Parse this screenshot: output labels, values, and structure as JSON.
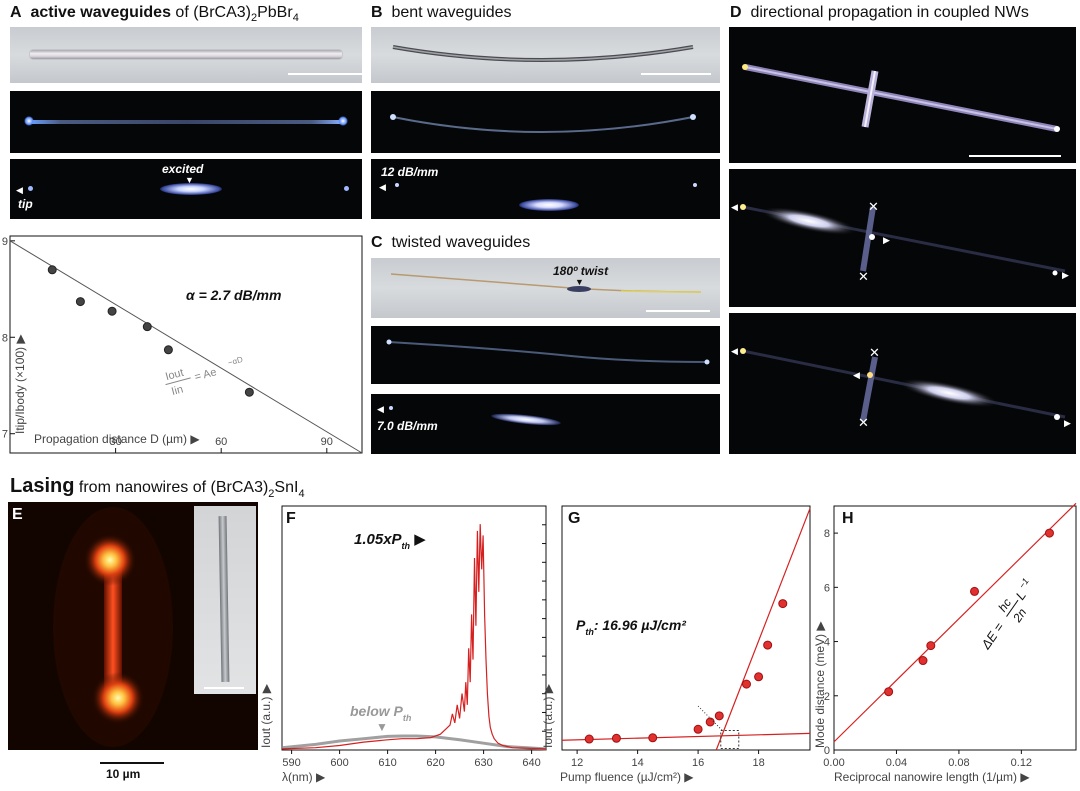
{
  "panel_A": {
    "letter": "A",
    "title_bold": "active waveguides",
    "title_rest": " of (BrCA3)",
    "title_sub1": "2",
    "title_mid": "PbBr",
    "title_sub2": "4",
    "label_excited": "excited",
    "label_tip": "tip",
    "colors": {
      "background": "#ffffff",
      "accent": "#d62020"
    }
  },
  "panel_B": {
    "letter": "B",
    "title": "bent waveguides",
    "loss_label": "12 dB/mm"
  },
  "panel_C": {
    "letter": "C",
    "title": "twisted waveguides",
    "twist_label": "180º twist",
    "loss_label": "7.0 dB/mm"
  },
  "panel_D": {
    "letter": "D",
    "title": "directional propagation in coupled NWs"
  },
  "lasing_header": {
    "bold": "Lasing",
    "rest": " from nanowires of (BrCA3)",
    "sub1": "2",
    "mid": "SnI",
    "sub2": "4"
  },
  "panel_E": {
    "letter": "E",
    "scalebar_label": "10 µm"
  },
  "panel_F": {
    "letter": "F"
  },
  "panel_G": {
    "letter": "G"
  },
  "panel_H": {
    "letter": "H"
  },
  "chart_data": [
    {
      "id": "A-loss",
      "type": "scatter",
      "xlabel": "Propagation distance D (µm)",
      "ylabel": "Itip/Ibody (×100)",
      "xlim": [
        0,
        100
      ],
      "ylim": [
        6.8,
        9.05
      ],
      "xticks": [
        30,
        60,
        90
      ],
      "yticks": [
        7,
        8,
        9
      ],
      "points": [
        [
          12,
          8.7
        ],
        [
          20,
          8.37
        ],
        [
          29,
          8.27
        ],
        [
          39,
          8.11
        ],
        [
          45,
          7.87
        ],
        [
          68,
          7.43
        ]
      ],
      "fit_line": [
        [
          0,
          9.0
        ],
        [
          100,
          6.8
        ]
      ],
      "annotation": "α = 2.7 dB/mm",
      "formula_num": "Iout",
      "formula_den": "Iin",
      "formula_rhs": "= Ae",
      "formula_exp": "−αD",
      "colors": {
        "points": "#555555",
        "line": "#555555"
      }
    },
    {
      "id": "F-spectrum",
      "type": "line",
      "xlabel": "λ(nm)",
      "ylabel": "Iout (a.u.)",
      "xlim": [
        588,
        643
      ],
      "xticks": [
        590,
        600,
        610,
        620,
        630,
        640
      ],
      "series": [
        {
          "name": "1.05xPth",
          "x": [
            588,
            595,
            600,
            605,
            610,
            613,
            616,
            619,
            621,
            622,
            623,
            623.5,
            624,
            624.5,
            625,
            625.5,
            626,
            626.3,
            626.6,
            626.9,
            627.2,
            627.5,
            627.8,
            628.1,
            628.4,
            628.7,
            629,
            629.3,
            629.6,
            629.9,
            630.2,
            630.5,
            630.8,
            631.1,
            631.4,
            631.8,
            632.2,
            633,
            634,
            636,
            643
          ],
          "y": [
            0.005,
            0.01,
            0.02,
            0.035,
            0.045,
            0.05,
            0.05,
            0.055,
            0.07,
            0.09,
            0.11,
            0.16,
            0.12,
            0.2,
            0.14,
            0.25,
            0.17,
            0.3,
            0.2,
            0.45,
            0.3,
            0.6,
            0.4,
            0.85,
            0.55,
            0.97,
            0.7,
            1.0,
            0.8,
            0.95,
            0.6,
            0.4,
            0.25,
            0.15,
            0.1,
            0.07,
            0.05,
            0.03,
            0.02,
            0.01,
            0.005
          ],
          "color": "#d62020"
        },
        {
          "name": "below Pth",
          "x": [
            588,
            595,
            600,
            605,
            610,
            613,
            616,
            620,
            625,
            630,
            635,
            643
          ],
          "y": [
            0.01,
            0.025,
            0.04,
            0.05,
            0.06,
            0.062,
            0.062,
            0.058,
            0.045,
            0.03,
            0.015,
            0.005
          ],
          "color": "#888888"
        }
      ],
      "label_high": "1.05xP",
      "label_high_sub": "th",
      "label_low": "below P",
      "label_low_sub": "th"
    },
    {
      "id": "G-threshold",
      "type": "scatter",
      "xlabel": "Pump fluence (µJ/cm²)",
      "ylabel": "Iout (a.u.)",
      "xlim": [
        11.5,
        19.7
      ],
      "ylim": [
        0,
        1
      ],
      "xticks": [
        12,
        14,
        16,
        18
      ],
      "points": [
        [
          12.4,
          0.045
        ],
        [
          13.3,
          0.048
        ],
        [
          14.5,
          0.05
        ],
        [
          16.0,
          0.085
        ],
        [
          16.4,
          0.115
        ],
        [
          16.7,
          0.14
        ],
        [
          17.6,
          0.27
        ],
        [
          18.0,
          0.3
        ],
        [
          18.3,
          0.43
        ],
        [
          18.8,
          0.6
        ]
      ],
      "fit_below": [
        [
          11.5,
          0.04
        ],
        [
          19.7,
          0.068
        ]
      ],
      "fit_above": [
        [
          16.6,
          0.0
        ],
        [
          19.7,
          0.99
        ]
      ],
      "annotation": "P",
      "annotation_sub": "th",
      "annotation_rest": ": 16.96 µJ/cm²",
      "colors": {
        "points": "#d62020",
        "line": "#d62020"
      }
    },
    {
      "id": "H-mode",
      "type": "scatter",
      "xlabel": "Reciprocal nanowire length (1/µm)",
      "ylabel": "Mode distance (meV)",
      "xlim": [
        0,
        0.155
      ],
      "ylim": [
        0,
        9
      ],
      "xticks": [
        0.0,
        0.04,
        0.08,
        0.12
      ],
      "xtick_labels": [
        "0.00",
        "0.04",
        "0.08",
        "0.12"
      ],
      "yticks": [
        0,
        2,
        4,
        6,
        8
      ],
      "points": [
        [
          0.035,
          2.15
        ],
        [
          0.057,
          3.3
        ],
        [
          0.062,
          3.85
        ],
        [
          0.09,
          5.85
        ],
        [
          0.138,
          8.0
        ]
      ],
      "fit_line": [
        [
          0.0,
          0.3
        ],
        [
          0.155,
          9.1
        ]
      ],
      "formula_lhs": "ΔE = ",
      "formula_num": "hc",
      "formula_den": "2n",
      "formula_rhs": "L",
      "formula_exp": "−1",
      "colors": {
        "points": "#d62020",
        "line": "#d62020"
      }
    }
  ]
}
